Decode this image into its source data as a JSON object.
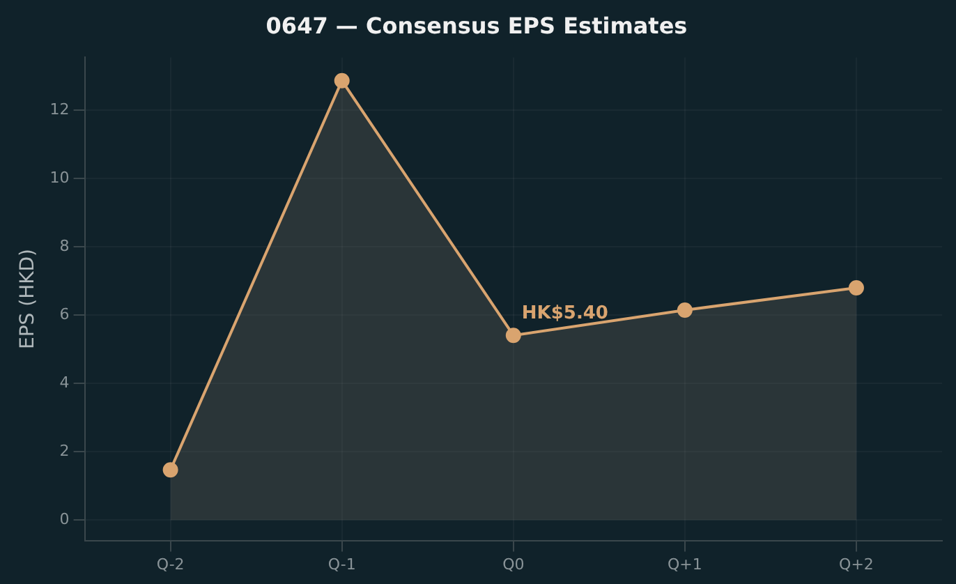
{
  "chart_data": {
    "type": "area",
    "title": "0647 — Consensus EPS Estimates",
    "ylabel": "EPS (HKD)",
    "categories": [
      "Q-2",
      "Q-1",
      "Q0",
      "Q+1",
      "Q+2"
    ],
    "series": [
      {
        "color": "#d9a46f",
        "values": [
          1.47,
          12.87,
          5.41,
          6.15,
          6.8
        ]
      }
    ],
    "ylim": [
      -0.6,
      13.55
    ],
    "yticks": [
      0,
      2,
      4,
      6,
      8,
      10,
      12
    ],
    "grid": true,
    "marker": "circle",
    "line_style": "solid",
    "annotations": [
      {
        "text": "HK$5.40",
        "x": "Q0",
        "y": 5.41
      }
    ]
  }
}
